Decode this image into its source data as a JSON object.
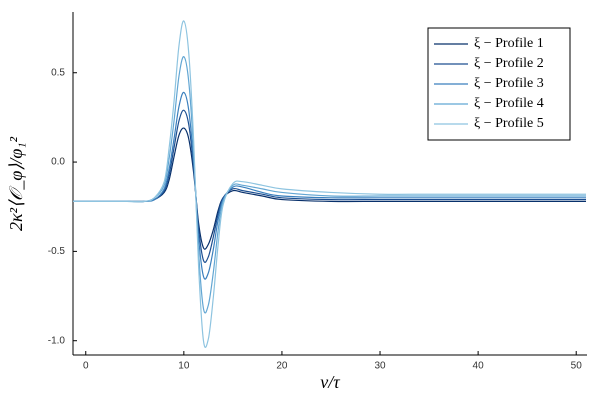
{
  "chart_data": {
    "type": "line",
    "xlabel": "v/τ",
    "ylabel": "2κ²⟨𝒪_φ⟩/φ₁²",
    "x": [
      -1.3,
      0,
      2,
      4,
      6,
      7,
      8,
      8.5,
      9,
      9.5,
      10,
      10.5,
      11,
      11.5,
      12,
      12.5,
      13,
      13.5,
      14,
      15,
      16,
      18,
      20,
      25,
      30,
      35,
      40,
      45,
      51
    ],
    "series": [
      {
        "name": "ξ − Profile 1",
        "color": "#08306b",
        "values": [
          -0.22,
          -0.22,
          -0.22,
          -0.22,
          -0.22,
          -0.21,
          -0.17,
          -0.1,
          0.03,
          0.15,
          0.19,
          0.13,
          -0.06,
          -0.34,
          -0.48,
          -0.46,
          -0.38,
          -0.27,
          -0.2,
          -0.16,
          -0.17,
          -0.19,
          -0.21,
          -0.22,
          -0.22,
          -0.22,
          -0.22,
          -0.22,
          -0.22
        ]
      },
      {
        "name": "ξ − Profile 2",
        "color": "#1d4f91",
        "values": [
          -0.22,
          -0.22,
          -0.22,
          -0.22,
          -0.22,
          -0.21,
          -0.16,
          -0.07,
          0.08,
          0.23,
          0.29,
          0.21,
          -0.03,
          -0.37,
          -0.55,
          -0.53,
          -0.42,
          -0.29,
          -0.2,
          -0.15,
          -0.16,
          -0.18,
          -0.2,
          -0.21,
          -0.21,
          -0.21,
          -0.21,
          -0.21,
          -0.21
        ]
      },
      {
        "name": "ξ − Profile 3",
        "color": "#3a7fbd",
        "values": [
          -0.22,
          -0.22,
          -0.22,
          -0.22,
          -0.22,
          -0.21,
          -0.15,
          -0.04,
          0.13,
          0.31,
          0.39,
          0.29,
          0.0,
          -0.42,
          -0.64,
          -0.62,
          -0.49,
          -0.32,
          -0.21,
          -0.14,
          -0.14,
          -0.17,
          -0.19,
          -0.2,
          -0.2,
          -0.2,
          -0.2,
          -0.2,
          -0.2
        ]
      },
      {
        "name": "ξ − Profile 4",
        "color": "#62a6d3",
        "values": [
          -0.22,
          -0.22,
          -0.22,
          -0.22,
          -0.22,
          -0.2,
          -0.13,
          0.02,
          0.23,
          0.48,
          0.59,
          0.45,
          0.06,
          -0.5,
          -0.82,
          -0.8,
          -0.62,
          -0.38,
          -0.22,
          -0.13,
          -0.13,
          -0.15,
          -0.17,
          -0.19,
          -0.19,
          -0.19,
          -0.19,
          -0.19,
          -0.19
        ]
      },
      {
        "name": "ξ − Profile 5",
        "color": "#8ec4e0",
        "values": [
          -0.22,
          -0.22,
          -0.22,
          -0.22,
          -0.22,
          -0.2,
          -0.11,
          0.08,
          0.34,
          0.65,
          0.79,
          0.61,
          0.12,
          -0.58,
          -1.0,
          -0.99,
          -0.76,
          -0.46,
          -0.24,
          -0.12,
          -0.11,
          -0.13,
          -0.15,
          -0.17,
          -0.18,
          -0.18,
          -0.18,
          -0.18,
          -0.18
        ]
      }
    ],
    "xlim": [
      -1.3,
      51.1
    ],
    "ylim": [
      -1.08,
      0.84
    ],
    "xticks": [
      0,
      10,
      20,
      30,
      40,
      50
    ],
    "yticks": [
      0.5,
      {
        "value": 0,
        "label": "0.0"
      },
      -0.5,
      {
        "value": -1,
        "label": "-1.0"
      }
    ],
    "grid": false,
    "legend": "upper-right"
  }
}
